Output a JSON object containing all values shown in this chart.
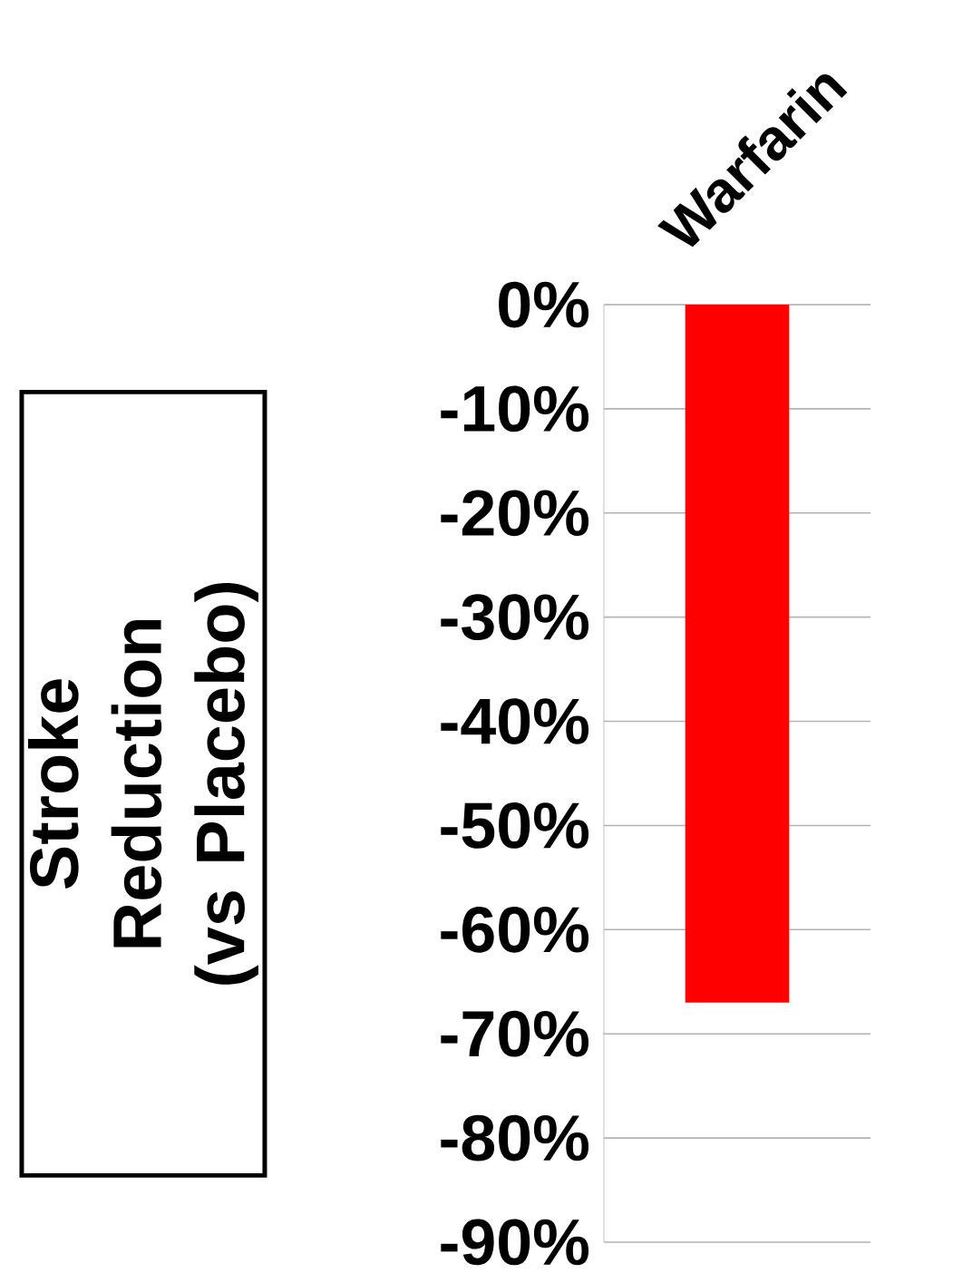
{
  "chart_data": {
    "type": "bar",
    "categories": [
      "Warfarin"
    ],
    "values": [
      -67
    ],
    "color": "#ff0000",
    "ylabel": "Stroke Reduction (vs Placebo)",
    "ylim": [
      -90,
      0
    ],
    "yticks": [
      {
        "value": 0,
        "label": "0%"
      },
      {
        "value": -10,
        "label": "-10%"
      },
      {
        "value": -20,
        "label": "-20%"
      },
      {
        "value": -30,
        "label": "-30%"
      },
      {
        "value": -40,
        "label": "-40%"
      },
      {
        "value": -50,
        "label": "-50%"
      },
      {
        "value": -60,
        "label": "-60%"
      },
      {
        "value": -70,
        "label": "-70%"
      },
      {
        "value": -80,
        "label": "-80%"
      },
      {
        "value": -90,
        "label": "-90%"
      }
    ],
    "grid": "y"
  }
}
